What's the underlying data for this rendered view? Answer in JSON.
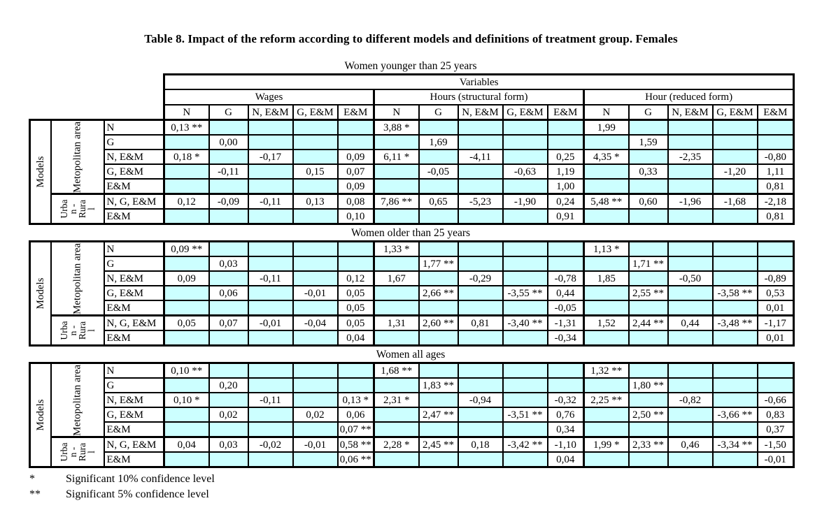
{
  "title": "Table 8. Impact of the reform according to different models and definitions of treatment group. Females",
  "header": {
    "variables_label": "Variables",
    "groups": [
      "Wages",
      "Hours (structural form)",
      "Hour (reduced form)"
    ],
    "columns": [
      "N",
      "G",
      "N, E&M",
      "G, E&M",
      "E&M"
    ]
  },
  "side_labels": {
    "models": "Models",
    "metropolitan": "Metopolitan area",
    "urban_rural": "Urba\nn -\nRura\nl"
  },
  "row_labels": [
    "N",
    "G",
    "N, E&M",
    "G, E&M",
    "E&M",
    "N, G, E&M",
    "E&M"
  ],
  "colors": {
    "empty_cell": "#ccffff",
    "filled_cell": "#ffffff",
    "border": "#000000"
  },
  "sections": [
    {
      "caption": "Women younger than 25 years",
      "rows": [
        [
          "0,13 **",
          "",
          "",
          "",
          "",
          "3,88 *",
          "",
          "",
          "",
          "",
          "1,99",
          "",
          "",
          "",
          ""
        ],
        [
          "",
          "0,00",
          "",
          "",
          "",
          "",
          "1,69",
          "",
          "",
          "",
          "",
          "1,59",
          "",
          "",
          ""
        ],
        [
          "0,18 *",
          "",
          "-0,17",
          "",
          "0,09",
          "6,11 *",
          "",
          "-4,11",
          "",
          "0,25",
          "4,35 *",
          "",
          "-2,35",
          "",
          "-0,80"
        ],
        [
          "",
          "-0,11",
          "",
          "0,15",
          "0,07",
          "",
          "-0,05",
          "",
          "-0,63",
          "1,19",
          "",
          "0,33",
          "",
          "-1,20",
          "1,11"
        ],
        [
          "",
          "",
          "",
          "",
          "0,09",
          "",
          "",
          "",
          "",
          "1,00",
          "",
          "",
          "",
          "",
          "0,81"
        ],
        [
          "0,12",
          "-0,09",
          "-0,11",
          "0,13",
          "0,08",
          "7,86 **",
          "0,65",
          "-5,23",
          "-1,90",
          "0,24",
          "5,48 **",
          "0,60",
          "-1,96",
          "-1,68",
          "-2,18"
        ],
        [
          "",
          "",
          "",
          "",
          "0,10",
          "",
          "",
          "",
          "",
          "0,91",
          "",
          "",
          "",
          "",
          "0,81"
        ]
      ]
    },
    {
      "caption": "Women older than 25 years",
      "rows": [
        [
          "0,09 **",
          "",
          "",
          "",
          "",
          "1,33 *",
          "",
          "",
          "",
          "",
          "1,13 *",
          "",
          "",
          "",
          ""
        ],
        [
          "",
          "0,03",
          "",
          "",
          "",
          "",
          "1,77 **",
          "",
          "",
          "",
          "",
          "1,71 **",
          "",
          "",
          ""
        ],
        [
          "0,09",
          "",
          "-0,11",
          "",
          "0,12",
          "1,67",
          "",
          "-0,29",
          "",
          "-0,78",
          "1,85",
          "",
          "-0,50",
          "",
          "-0,89"
        ],
        [
          "",
          "0,06",
          "",
          "-0,01",
          "0,05",
          "",
          "2,66 **",
          "",
          "-3,55 **",
          "0,44",
          "",
          "2,55 **",
          "",
          "-3,58 **",
          "0,53"
        ],
        [
          "",
          "",
          "",
          "",
          "0,05",
          "",
          "",
          "",
          "",
          "-0,05",
          "",
          "",
          "",
          "",
          "0,01"
        ],
        [
          "0,05",
          "0,07",
          "-0,01",
          "-0,04",
          "0,05",
          "1,31",
          "2,60 **",
          "0,81",
          "-3,40 **",
          "-1,31",
          "1,52",
          "2,44 **",
          "0,44",
          "-3,48 **",
          "-1,17"
        ],
        [
          "",
          "",
          "",
          "",
          "0,04",
          "",
          "",
          "",
          "",
          "-0,34",
          "",
          "",
          "",
          "",
          "0,01"
        ]
      ]
    },
    {
      "caption": "Women all ages",
      "rows": [
        [
          "0,10 **",
          "",
          "",
          "",
          "",
          "1,68 **",
          "",
          "",
          "",
          "",
          "1,32 **",
          "",
          "",
          "",
          ""
        ],
        [
          "",
          "0,20",
          "",
          "",
          "",
          "",
          "1,83 **",
          "",
          "",
          "",
          "",
          "1,80 **",
          "",
          "",
          ""
        ],
        [
          "0,10 *",
          "",
          "-0,11",
          "",
          "0,13 *",
          "2,31 *",
          "",
          "-0,94",
          "",
          "-0,32",
          "2,25 **",
          "",
          "-0,82",
          "",
          "-0,66"
        ],
        [
          "",
          "0,02",
          "",
          "0,02",
          "0,06",
          "",
          "2,47 **",
          "",
          "-3,51 **",
          "0,76",
          "",
          "2,50 **",
          "",
          "-3,66 **",
          "0,83"
        ],
        [
          "",
          "",
          "",
          "",
          "0,07 **",
          "",
          "",
          "",
          "",
          "0,34",
          "",
          "",
          "",
          "",
          "0,37"
        ],
        [
          "0,04",
          "0,03",
          "-0,02",
          "-0,01",
          "0,58 **",
          "2,28 *",
          "2,45 **",
          "0,18",
          "-3,42 **",
          "-1,10",
          "1,99 *",
          "2,33 **",
          "0,46",
          "-3,34 **",
          "-1,50"
        ],
        [
          "",
          "",
          "",
          "",
          "0,06 **",
          "",
          "",
          "",
          "",
          "0,04",
          "",
          "",
          "",
          "",
          "-0,01"
        ]
      ]
    }
  ],
  "footnotes": [
    {
      "symbol": "*",
      "text": "Significant 10% confidence level"
    },
    {
      "symbol": "**",
      "text": "Significant 5% confidence level"
    }
  ]
}
